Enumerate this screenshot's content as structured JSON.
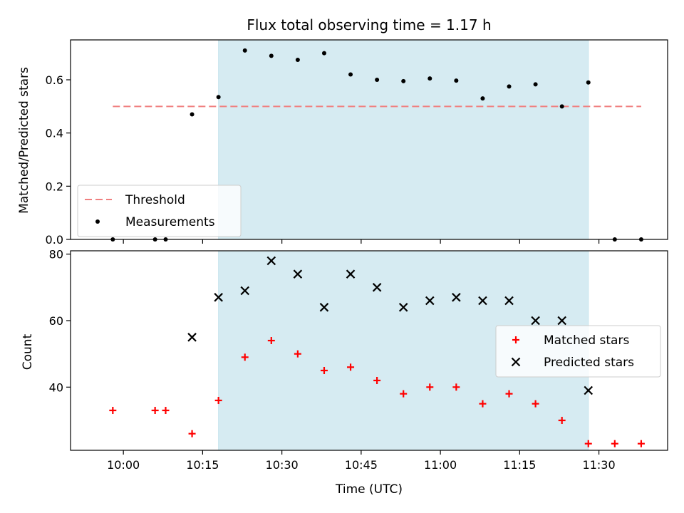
{
  "chart_data": [
    {
      "type": "scatter",
      "title": "Flux total observing time = 1.17 h",
      "ylabel": "Matched/Predicted stars",
      "xlabel": "",
      "xlim": [
        "09:50",
        "11:43"
      ],
      "ylim": [
        0,
        0.75
      ],
      "yticks": [
        0.0,
        0.2,
        0.4,
        0.6
      ],
      "ytick_labels": [
        "0.0",
        "0.2",
        "0.4",
        "0.6"
      ],
      "shaded_region": {
        "start": "10:18",
        "end": "11:28",
        "color": "#add8e6"
      },
      "legend_position": "lower-left",
      "threshold": {
        "name": "Threshold",
        "y": 0.5,
        "x_start": "09:58",
        "x_end": "11:38",
        "color": "#f08080",
        "style": "dashed"
      },
      "series": [
        {
          "name": "Measurements",
          "color": "#000000",
          "marker": "dot",
          "x": [
            "09:58",
            "10:06",
            "10:08",
            "10:13",
            "10:18",
            "10:23",
            "10:28",
            "10:33",
            "10:38",
            "10:43",
            "10:48",
            "10:53",
            "10:58",
            "11:03",
            "11:08",
            "11:13",
            "11:18",
            "11:23",
            "11:28",
            "11:33",
            "11:38"
          ],
          "y": [
            0.0,
            0.0,
            0.0,
            0.47,
            0.535,
            0.71,
            0.69,
            0.675,
            0.7,
            0.62,
            0.6,
            0.595,
            0.605,
            0.597,
            0.53,
            0.575,
            0.583,
            0.5,
            0.59,
            0.0,
            0.0
          ]
        }
      ]
    },
    {
      "type": "scatter",
      "title": "",
      "ylabel": "Count",
      "xlabel": "Time (UTC)",
      "xlim": [
        "09:50",
        "11:43"
      ],
      "ylim": [
        21,
        81
      ],
      "yticks": [
        40,
        60,
        80
      ],
      "ytick_labels": [
        "40",
        "60",
        "80"
      ],
      "xticks": [
        "10:00",
        "10:15",
        "10:30",
        "10:45",
        "11:00",
        "11:15",
        "11:30"
      ],
      "shaded_region": {
        "start": "10:18",
        "end": "11:28",
        "color": "#add8e6"
      },
      "legend_position": "center-right",
      "series": [
        {
          "name": "Matched stars",
          "color": "#ff0000",
          "marker": "plus",
          "x": [
            "09:58",
            "10:06",
            "10:08",
            "10:13",
            "10:18",
            "10:23",
            "10:28",
            "10:33",
            "10:38",
            "10:43",
            "10:48",
            "10:53",
            "10:58",
            "11:03",
            "11:08",
            "11:13",
            "11:18",
            "11:23",
            "11:28",
            "11:33",
            "11:38"
          ],
          "y": [
            33,
            33,
            33,
            26,
            36,
            49,
            54,
            50,
            45,
            46,
            42,
            38,
            40,
            40,
            35,
            38,
            35,
            30,
            23,
            23,
            23
          ]
        },
        {
          "name": "Predicted stars",
          "color": "#000000",
          "marker": "x",
          "x": [
            "10:13",
            "10:18",
            "10:23",
            "10:28",
            "10:33",
            "10:38",
            "10:43",
            "10:48",
            "10:53",
            "10:58",
            "11:03",
            "11:08",
            "11:13",
            "11:18",
            "11:23",
            "11:28"
          ],
          "y": [
            55,
            67,
            69,
            78,
            74,
            64,
            74,
            70,
            64,
            66,
            67,
            66,
            66,
            60,
            60,
            39
          ]
        }
      ]
    }
  ]
}
